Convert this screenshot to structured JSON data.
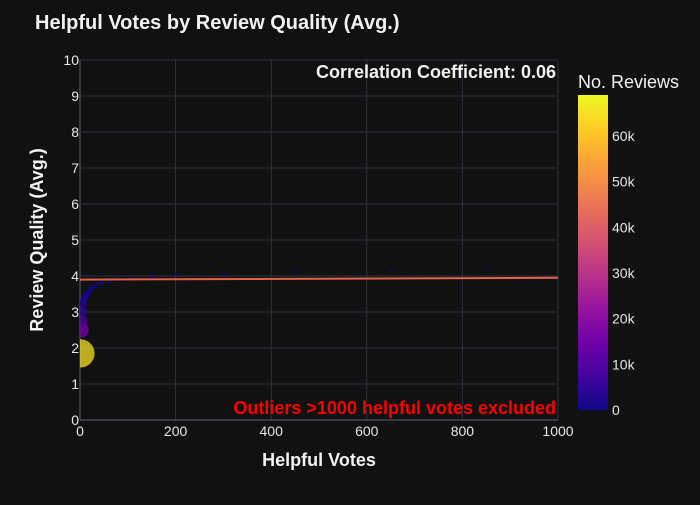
{
  "chart_data": {
    "type": "scatter",
    "title": "Helpful Votes by Review Quality (Avg.)",
    "xlabel": "Helpful Votes",
    "ylabel": "Review Quality (Avg.)",
    "xlim": [
      0,
      1000
    ],
    "ylim": [
      0,
      10
    ],
    "x_ticks": [
      0,
      200,
      400,
      600,
      800,
      1000
    ],
    "y_ticks": [
      0,
      1,
      2,
      3,
      4,
      5,
      6,
      7,
      8,
      9,
      10
    ],
    "grid": true,
    "annotations": {
      "correlation": "Correlation Coefficient: 0.06",
      "note": "Outliers >1000 helpful votes excluded"
    },
    "colorbar": {
      "title": "No. Reviews",
      "min": 0,
      "max": 69000,
      "ticks": [
        0,
        10000,
        20000,
        30000,
        40000,
        50000,
        60000
      ],
      "tick_labels": [
        "0",
        "10k",
        "20k",
        "30k",
        "40k",
        "50k",
        "60k"
      ],
      "colorscale": [
        "#0d0887",
        "#46039f",
        "#7201a8",
        "#9c179e",
        "#bd3786",
        "#d8576b",
        "#ed7953",
        "#fb9f3a",
        "#fdca26",
        "#f0f921"
      ]
    },
    "points": [
      {
        "x": 1,
        "y": 1.85,
        "count": 65000
      },
      {
        "x": 2,
        "y": 2.5,
        "count": 16000
      },
      {
        "x": 3,
        "y": 2.75,
        "count": 8000
      },
      {
        "x": 4,
        "y": 3.0,
        "count": 5000
      },
      {
        "x": 5,
        "y": 3.2,
        "count": 3000
      },
      {
        "x": 7,
        "y": 3.3,
        "count": 2000
      },
      {
        "x": 9,
        "y": 3.4,
        "count": 1400
      },
      {
        "x": 11,
        "y": 3.45,
        "count": 1000
      },
      {
        "x": 14,
        "y": 3.5,
        "count": 800
      },
      {
        "x": 18,
        "y": 3.55,
        "count": 600
      },
      {
        "x": 22,
        "y": 3.65,
        "count": 450
      },
      {
        "x": 28,
        "y": 3.7,
        "count": 350
      },
      {
        "x": 35,
        "y": 3.75,
        "count": 250
      },
      {
        "x": 45,
        "y": 3.8,
        "count": 180
      },
      {
        "x": 60,
        "y": 3.85,
        "count": 120
      },
      {
        "x": 80,
        "y": 3.9,
        "count": 80
      },
      {
        "x": 110,
        "y": 3.95,
        "count": 50
      },
      {
        "x": 150,
        "y": 4.0,
        "count": 30
      },
      {
        "x": 200,
        "y": 4.05,
        "count": 20
      },
      {
        "x": 300,
        "y": 4.1,
        "count": 10
      },
      {
        "x": 450,
        "y": 4.1,
        "count": 5
      },
      {
        "x": 650,
        "y": 4.15,
        "count": 3
      },
      {
        "x": 850,
        "y": 4.2,
        "count": 2
      }
    ],
    "trendline": {
      "x": [
        0,
        1000
      ],
      "y": [
        3.9,
        3.95
      ],
      "color": "#e8604c"
    }
  }
}
